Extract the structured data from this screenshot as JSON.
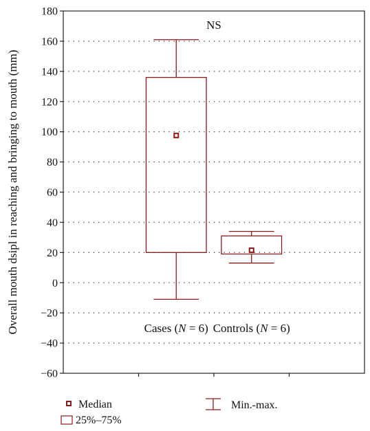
{
  "chart_data": {
    "type": "box",
    "title": "",
    "xlabel": "",
    "ylabel": "Overall mouth dsipl in reaching and bringing to mouth (mm)",
    "ylim": [
      -60,
      180
    ],
    "yticks": [
      -60,
      -40,
      -20,
      0,
      20,
      40,
      60,
      80,
      100,
      120,
      140,
      160,
      180
    ],
    "grid": true,
    "annotation": "NS",
    "colors": {
      "box": "#8b1a1a",
      "median": "#8b1a1a"
    },
    "series": [
      {
        "category_prefix": "Cases (",
        "n_symbol": "N",
        "n_text": " = 6)",
        "min": -11,
        "q1": 20,
        "median": 97.5,
        "q3": 136,
        "max": 161
      },
      {
        "category_prefix": "Controls (",
        "n_symbol": "N",
        "n_text": " = 6)",
        "min": 13,
        "q1": 19,
        "median": 21.5,
        "q3": 31,
        "max": 34
      }
    ],
    "legend": {
      "median": "Median",
      "box": "25%–75%",
      "whisker": "Min.-max."
    }
  }
}
